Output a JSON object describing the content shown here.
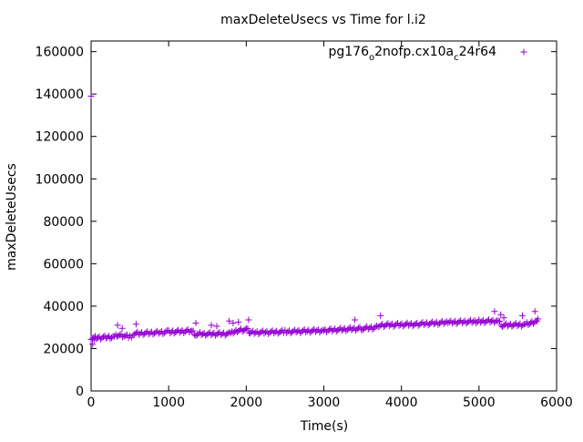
{
  "chart_data": {
    "type": "scatter",
    "title": "maxDeleteUsecs vs Time for l.i2",
    "xlabel": "Time(s)",
    "ylabel": "maxDeleteUsecs",
    "xlim": [
      0,
      6000
    ],
    "ylim": [
      0,
      165000
    ],
    "x_ticks": [
      0,
      1000,
      2000,
      3000,
      4000,
      5000,
      6000
    ],
    "y_ticks": [
      0,
      20000,
      40000,
      60000,
      80000,
      100000,
      120000,
      140000,
      160000
    ],
    "x_tick_labels": [
      "0",
      "1000",
      "2000",
      "3000",
      "4000",
      "5000",
      "6000"
    ],
    "y_tick_labels": [
      "0",
      "20000",
      "40000",
      "60000",
      "80000",
      "100000",
      "120000",
      "140000",
      "160000"
    ],
    "grid": false,
    "legend_position": "top-right",
    "series": [
      {
        "name": "pg176_o2nofp.cx10a_c24r64",
        "name_parts": [
          {
            "text": "pg176",
            "sub": false
          },
          {
            "text": "o",
            "sub": true
          },
          {
            "text": "2nofp.cx10a",
            "sub": false
          },
          {
            "text": "c",
            "sub": true
          },
          {
            "text": "24r64",
            "sub": false
          }
        ],
        "color": "#9400d3",
        "marker": "plus",
        "trend": [
          [
            0,
            25000
          ],
          [
            300,
            25500
          ],
          [
            350,
            26500
          ],
          [
            500,
            25500
          ],
          [
            560,
            27000
          ],
          [
            1000,
            27800
          ],
          [
            1300,
            28300
          ],
          [
            1350,
            26800
          ],
          [
            1800,
            27000
          ],
          [
            1900,
            28800
          ],
          [
            2020,
            28800
          ],
          [
            2050,
            27500
          ],
          [
            2500,
            27900
          ],
          [
            3000,
            28500
          ],
          [
            3500,
            29500
          ],
          [
            3700,
            30000
          ],
          [
            3720,
            31000
          ],
          [
            4200,
            31500
          ],
          [
            4600,
            32300
          ],
          [
            5000,
            32800
          ],
          [
            5250,
            33000
          ],
          [
            5300,
            31000
          ],
          [
            5600,
            31300
          ],
          [
            5650,
            32000
          ],
          [
            5750,
            33000
          ]
        ],
        "outliers": [
          [
            0,
            139000
          ],
          [
            20,
            22000
          ],
          [
            40,
            24000
          ],
          [
            340,
            31000
          ],
          [
            400,
            29500
          ],
          [
            580,
            31500
          ],
          [
            1350,
            32000
          ],
          [
            1550,
            31000
          ],
          [
            1620,
            30500
          ],
          [
            1780,
            33000
          ],
          [
            1830,
            32000
          ],
          [
            1900,
            32500
          ],
          [
            2030,
            33500
          ],
          [
            3400,
            33500
          ],
          [
            3730,
            35500
          ],
          [
            5200,
            37500
          ],
          [
            5280,
            36000
          ],
          [
            5320,
            34500
          ],
          [
            5560,
            35500
          ],
          [
            5720,
            37500
          ],
          [
            5760,
            34000
          ]
        ]
      }
    ]
  }
}
